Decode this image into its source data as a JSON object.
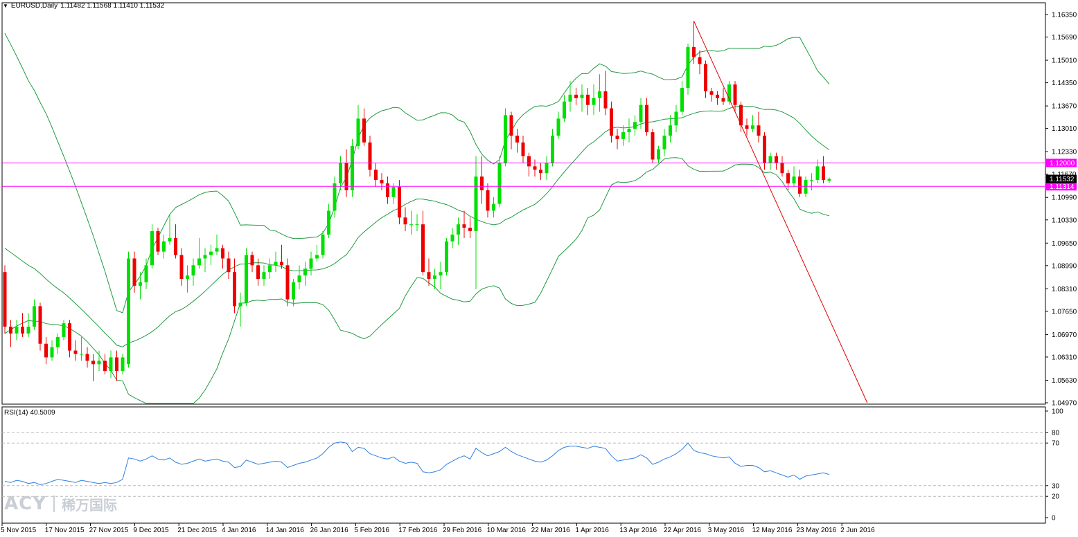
{
  "header": {
    "symbol": "EURUSD,Daily",
    "ohlc": "1.11482 1.11568 1.11410 1.11532"
  },
  "rsi_header": {
    "label": "RSI(14)",
    "value": "40.5009"
  },
  "logo": {
    "brand": "ACY",
    "chinese": "稀万国际"
  },
  "colors": {
    "bull": "#00e000",
    "bear": "#ee0000",
    "bollinger": "#1f9a3f",
    "level_line": "#ff00ff",
    "trendline": "#e00000",
    "rsi_line": "#2f7fe0",
    "grid_dash": "#b8b8b8"
  },
  "chart_data": [
    {
      "type": "candlestick",
      "title": "EURUSD,Daily",
      "ylim": [
        1.0497,
        1.1635
      ],
      "y_ticks": [
        "1.16350",
        "1.15690",
        "1.15010",
        "1.14350",
        "1.13670",
        "1.13010",
        "1.12330",
        "1.11670",
        "1.10990",
        "1.10330",
        "1.09650",
        "1.08990",
        "1.08310",
        "1.07650",
        "1.06970",
        "1.06310",
        "1.05630",
        "1.04970"
      ],
      "x_ticks": [
        "5 Nov 2015",
        "17 Nov 2015",
        "27 Nov 2015",
        "9 Dec 2015",
        "21 Dec 2015",
        "4 Jan 2016",
        "14 Jan 2016",
        "26 Jan 2016",
        "5 Feb 2016",
        "17 Feb 2016",
        "29 Feb 2016",
        "10 Mar 2016",
        "22 Mar 2016",
        "1 Apr 2016",
        "13 Apr 2016",
        "22 Apr 2016",
        "3 May 2016",
        "12 May 2016",
        "23 May 2016",
        "2 Jun 2016"
      ],
      "horizontal_levels": [
        {
          "value": 1.12,
          "label": "1.12000"
        },
        {
          "value": 1.11314,
          "label": "1.11314"
        }
      ],
      "current_price": {
        "value": 1.11532,
        "label": "1.11532"
      },
      "trendline": {
        "from_date": "3 May 2016",
        "from_price": 1.1616,
        "slope_per_bar": -0.0038
      },
      "ohlc": [
        [
          1.088,
          1.09,
          1.07,
          1.072
        ],
        [
          1.072,
          1.074,
          1.066,
          1.07
        ],
        [
          1.07,
          1.074,
          1.068,
          1.072
        ],
        [
          1.072,
          1.076,
          1.069,
          1.07
        ],
        [
          1.07,
          1.076,
          1.069,
          1.072
        ],
        [
          1.072,
          1.08,
          1.071,
          1.078
        ],
        [
          1.078,
          1.079,
          1.065,
          1.067
        ],
        [
          1.067,
          1.069,
          1.061,
          1.063
        ],
        [
          1.063,
          1.068,
          1.062,
          1.066
        ],
        [
          1.066,
          1.07,
          1.064,
          1.069
        ],
        [
          1.069,
          1.074,
          1.068,
          1.073
        ],
        [
          1.073,
          1.074,
          1.063,
          1.065
        ],
        [
          1.065,
          1.068,
          1.062,
          1.064
        ],
        [
          1.064,
          1.069,
          1.062,
          1.064
        ],
        [
          1.064,
          1.066,
          1.06,
          1.062
        ],
        [
          1.062,
          1.064,
          1.056,
          1.061
        ],
        [
          1.061,
          1.065,
          1.059,
          1.062
        ],
        [
          1.062,
          1.064,
          1.058,
          1.059
        ],
        [
          1.059,
          1.065,
          1.057,
          1.063
        ],
        [
          1.063,
          1.065,
          1.056,
          1.059
        ],
        [
          1.059,
          1.064,
          1.058,
          1.063
        ],
        [
          1.061,
          1.094,
          1.06,
          1.092
        ],
        [
          1.092,
          1.094,
          1.082,
          1.084
        ],
        [
          1.084,
          1.088,
          1.08,
          1.085
        ],
        [
          1.085,
          1.092,
          1.083,
          1.09
        ],
        [
          1.09,
          1.102,
          1.089,
          1.1
        ],
        [
          1.1,
          1.101,
          1.093,
          1.094
        ],
        [
          1.094,
          1.099,
          1.092,
          1.097
        ],
        [
          1.097,
          1.105,
          1.096,
          1.098
        ],
        [
          1.098,
          1.102,
          1.092,
          1.093
        ],
        [
          1.093,
          1.095,
          1.084,
          1.086
        ],
        [
          1.086,
          1.09,
          1.082,
          1.087
        ],
        [
          1.087,
          1.092,
          1.084,
          1.09
        ],
        [
          1.09,
          1.098,
          1.089,
          1.092
        ],
        [
          1.092,
          1.095,
          1.088,
          1.093
        ],
        [
          1.093,
          1.096,
          1.09,
          1.094
        ],
        [
          1.094,
          1.099,
          1.093,
          1.095
        ],
        [
          1.095,
          1.096,
          1.089,
          1.092
        ],
        [
          1.092,
          1.094,
          1.086,
          1.088
        ],
        [
          1.088,
          1.092,
          1.076,
          1.078
        ],
        [
          1.078,
          1.082,
          1.072,
          1.079
        ],
        [
          1.079,
          1.095,
          1.078,
          1.093
        ],
        [
          1.093,
          1.094,
          1.088,
          1.09
        ],
        [
          1.09,
          1.092,
          1.084,
          1.086
        ],
        [
          1.086,
          1.09,
          1.084,
          1.088
        ],
        [
          1.088,
          1.092,
          1.086,
          1.09
        ],
        [
          1.09,
          1.094,
          1.088,
          1.091
        ],
        [
          1.091,
          1.096,
          1.089,
          1.09
        ],
        [
          1.09,
          1.092,
          1.078,
          1.08
        ],
        [
          1.08,
          1.086,
          1.078,
          1.085
        ],
        [
          1.085,
          1.09,
          1.083,
          1.087
        ],
        [
          1.087,
          1.091,
          1.084,
          1.089
        ],
        [
          1.089,
          1.094,
          1.087,
          1.092
        ],
        [
          1.092,
          1.096,
          1.091,
          1.093
        ],
        [
          1.093,
          1.1,
          1.092,
          1.099
        ],
        [
          1.099,
          1.108,
          1.098,
          1.106
        ],
        [
          1.106,
          1.116,
          1.104,
          1.114
        ],
        [
          1.114,
          1.122,
          1.112,
          1.12
        ],
        [
          1.12,
          1.124,
          1.11,
          1.112
        ],
        [
          1.112,
          1.127,
          1.11,
          1.125
        ],
        [
          1.125,
          1.137,
          1.124,
          1.133
        ],
        [
          1.133,
          1.136,
          1.125,
          1.126
        ],
        [
          1.126,
          1.128,
          1.116,
          1.118
        ],
        [
          1.118,
          1.12,
          1.113,
          1.115
        ],
        [
          1.115,
          1.117,
          1.112,
          1.114
        ],
        [
          1.114,
          1.116,
          1.108,
          1.11
        ],
        [
          1.11,
          1.114,
          1.108,
          1.113
        ],
        [
          1.113,
          1.115,
          1.102,
          1.104
        ],
        [
          1.104,
          1.107,
          1.1,
          1.102
        ],
        [
          1.102,
          1.106,
          1.099,
          1.102
        ],
        [
          1.102,
          1.105,
          1.1,
          1.102
        ],
        [
          1.102,
          1.106,
          1.087,
          1.088
        ],
        [
          1.088,
          1.092,
          1.084,
          1.086
        ],
        [
          1.086,
          1.089,
          1.083,
          1.087
        ],
        [
          1.087,
          1.091,
          1.083,
          1.088
        ],
        [
          1.088,
          1.098,
          1.087,
          1.097
        ],
        [
          1.097,
          1.101,
          1.095,
          1.099
        ],
        [
          1.099,
          1.104,
          1.096,
          1.102
        ],
        [
          1.102,
          1.106,
          1.098,
          1.101
        ],
        [
          1.101,
          1.104,
          1.098,
          1.1
        ],
        [
          1.1,
          1.122,
          1.083,
          1.116
        ],
        [
          1.116,
          1.122,
          1.108,
          1.112
        ],
        [
          1.112,
          1.114,
          1.104,
          1.106
        ],
        [
          1.106,
          1.11,
          1.104,
          1.108
        ],
        [
          1.108,
          1.122,
          1.107,
          1.12
        ],
        [
          1.12,
          1.136,
          1.119,
          1.134
        ],
        [
          1.134,
          1.135,
          1.124,
          1.128
        ],
        [
          1.128,
          1.13,
          1.123,
          1.126
        ],
        [
          1.126,
          1.128,
          1.12,
          1.122
        ],
        [
          1.122,
          1.123,
          1.116,
          1.119
        ],
        [
          1.119,
          1.121,
          1.116,
          1.118
        ],
        [
          1.118,
          1.12,
          1.115,
          1.117
        ],
        [
          1.117,
          1.122,
          1.115,
          1.12
        ],
        [
          1.12,
          1.13,
          1.119,
          1.128
        ],
        [
          1.128,
          1.135,
          1.127,
          1.133
        ],
        [
          1.133,
          1.14,
          1.132,
          1.138
        ],
        [
          1.138,
          1.144,
          1.135,
          1.14
        ],
        [
          1.14,
          1.142,
          1.137,
          1.139
        ],
        [
          1.139,
          1.143,
          1.135,
          1.14
        ],
        [
          1.14,
          1.142,
          1.134,
          1.137
        ],
        [
          1.137,
          1.143,
          1.134,
          1.139
        ],
        [
          1.139,
          1.146,
          1.135,
          1.141
        ],
        [
          1.141,
          1.147,
          1.134,
          1.136
        ],
        [
          1.136,
          1.138,
          1.126,
          1.128
        ],
        [
          1.128,
          1.13,
          1.124,
          1.127
        ],
        [
          1.127,
          1.131,
          1.125,
          1.129
        ],
        [
          1.129,
          1.133,
          1.126,
          1.13
        ],
        [
          1.13,
          1.134,
          1.128,
          1.132
        ],
        [
          1.132,
          1.139,
          1.13,
          1.137
        ],
        [
          1.137,
          1.139,
          1.128,
          1.129
        ],
        [
          1.129,
          1.13,
          1.12,
          1.121
        ],
        [
          1.121,
          1.125,
          1.12,
          1.124
        ],
        [
          1.124,
          1.13,
          1.122,
          1.128
        ],
        [
          1.128,
          1.134,
          1.126,
          1.131
        ],
        [
          1.131,
          1.137,
          1.129,
          1.135
        ],
        [
          1.135,
          1.144,
          1.134,
          1.142
        ],
        [
          1.142,
          1.155,
          1.14,
          1.154
        ],
        [
          1.154,
          1.1616,
          1.149,
          1.151
        ],
        [
          1.151,
          1.153,
          1.146,
          1.149
        ],
        [
          1.149,
          1.15,
          1.139,
          1.141
        ],
        [
          1.141,
          1.142,
          1.138,
          1.14
        ],
        [
          1.14,
          1.141,
          1.137,
          1.139
        ],
        [
          1.139,
          1.142,
          1.137,
          1.138
        ],
        [
          1.138,
          1.144,
          1.137,
          1.143
        ],
        [
          1.143,
          1.144,
          1.135,
          1.137
        ],
        [
          1.137,
          1.138,
          1.129,
          1.131
        ],
        [
          1.131,
          1.133,
          1.128,
          1.13
        ],
        [
          1.13,
          1.134,
          1.129,
          1.131
        ],
        [
          1.131,
          1.135,
          1.126,
          1.128
        ],
        [
          1.128,
          1.129,
          1.118,
          1.12
        ],
        [
          1.12,
          1.123,
          1.118,
          1.122
        ],
        [
          1.122,
          1.123,
          1.118,
          1.12
        ],
        [
          1.12,
          1.122,
          1.116,
          1.117
        ],
        [
          1.117,
          1.118,
          1.112,
          1.114
        ],
        [
          1.114,
          1.119,
          1.113,
          1.116
        ],
        [
          1.116,
          1.118,
          1.11,
          1.111
        ],
        [
          1.111,
          1.116,
          1.11,
          1.115
        ],
        [
          1.115,
          1.117,
          1.112,
          1.115
        ],
        [
          1.115,
          1.121,
          1.114,
          1.119
        ],
        [
          1.119,
          1.122,
          1.114,
          1.115
        ],
        [
          1.1148,
          1.1157,
          1.1141,
          1.1153
        ]
      ],
      "bollinger_bands": {
        "upper_start": 1.158,
        "middle_start": 1.095,
        "lower_start": 1.07
      }
    },
    {
      "type": "line",
      "title": "RSI(14) 40.5009",
      "ylim": [
        0,
        100
      ],
      "y_ticks": [
        "100",
        "80",
        "70",
        "30",
        "20",
        "0"
      ],
      "reference_levels": [
        80,
        70,
        30,
        20
      ],
      "series": [
        {
          "name": "RSI(14)",
          "values": [
            34,
            33,
            35,
            34,
            32,
            33,
            31,
            32,
            34,
            36,
            35,
            34,
            33,
            35,
            34,
            33,
            32,
            33,
            32,
            33,
            36,
            56,
            55,
            53,
            55,
            58,
            55,
            54,
            56,
            52,
            50,
            51,
            53,
            55,
            53,
            54,
            55,
            53,
            52,
            47,
            48,
            54,
            52,
            50,
            51,
            52,
            53,
            52,
            47,
            49,
            51,
            52,
            54,
            56,
            60,
            66,
            70,
            71,
            70,
            62,
            66,
            65,
            60,
            58,
            56,
            55,
            57,
            53,
            51,
            52,
            51,
            43,
            42,
            43,
            45,
            50,
            53,
            56,
            58,
            55,
            65,
            61,
            58,
            60,
            62,
            66,
            62,
            59,
            57,
            55,
            53,
            52,
            54,
            58,
            63,
            66,
            67,
            67,
            66,
            65,
            67,
            66,
            65,
            58,
            53,
            54,
            55,
            56,
            59,
            56,
            50,
            52,
            55,
            57,
            60,
            64,
            70,
            63,
            61,
            60,
            58,
            57,
            56,
            57,
            51,
            48,
            49,
            49,
            47,
            43,
            44,
            42,
            40,
            38,
            40,
            36,
            39,
            40,
            41,
            42,
            40.5009
          ]
        }
      ]
    }
  ]
}
